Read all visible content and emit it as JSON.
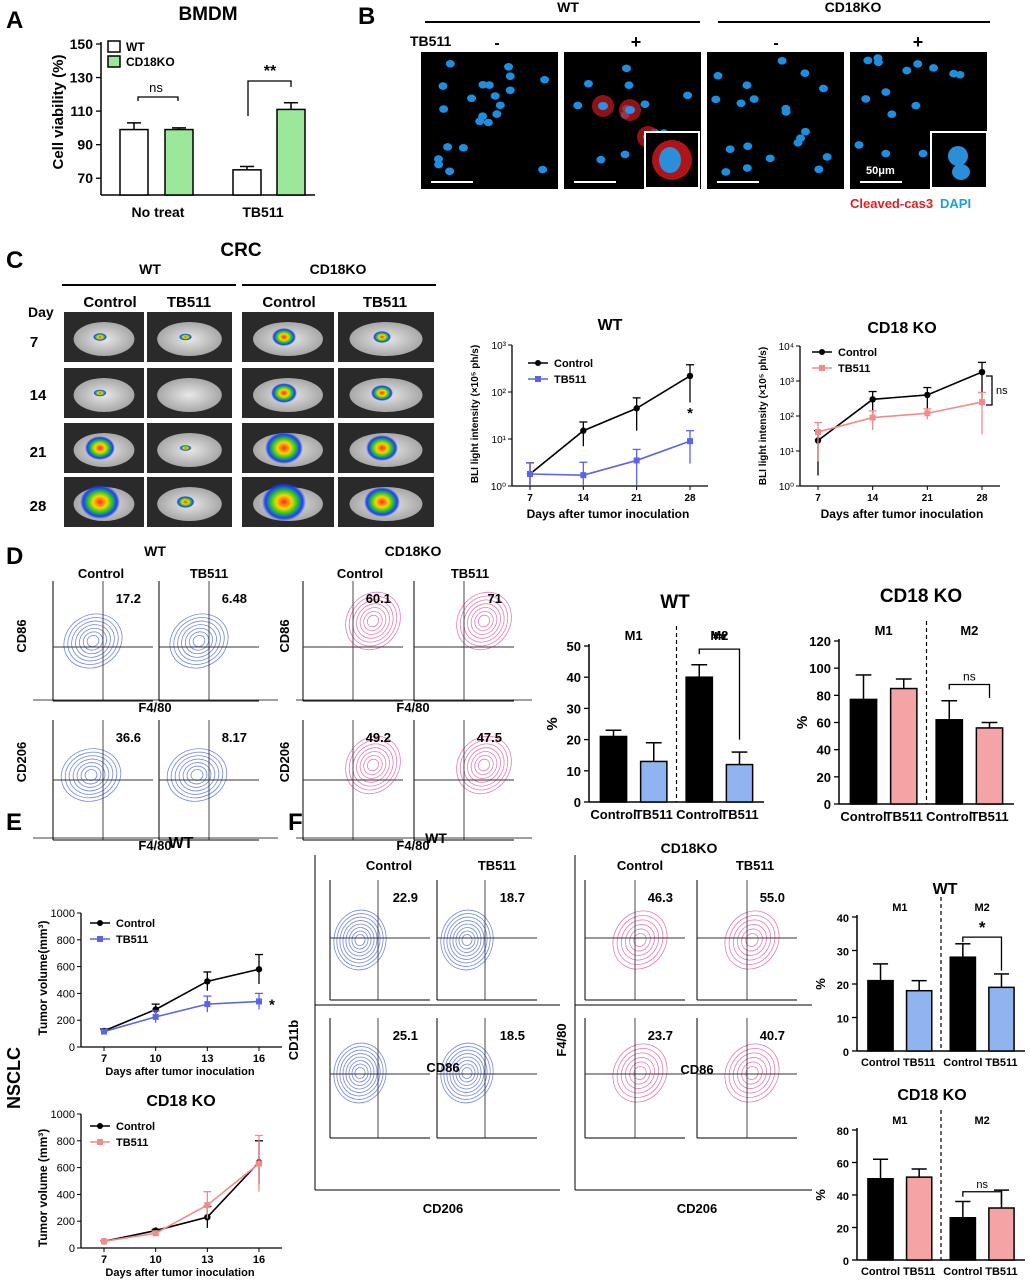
{
  "panels": {
    "A": "A",
    "B": "B",
    "C": "C",
    "D": "D",
    "E": "E",
    "F": "F"
  },
  "panelA": {
    "title": "BMDM",
    "ylabel": "Cell viability (%)",
    "yticks": [
      "150",
      "130",
      "110",
      "90",
      "70"
    ],
    "legend": [
      "WT",
      "CD18KO"
    ],
    "groups": [
      "No treat",
      "TB511"
    ],
    "sig": [
      "ns",
      "**"
    ]
  },
  "panelB": {
    "groups": [
      "WT",
      "CD18KO"
    ],
    "row_label": "TB511",
    "signs": [
      "-",
      "+",
      "-",
      "+"
    ],
    "scale": "50μm",
    "legend_red": "Cleaved-cas3",
    "legend_blue": "DAPI"
  },
  "panelC": {
    "title": "CRC",
    "groups": [
      "WT",
      "CD18KO"
    ],
    "cols": [
      "Control",
      "TB511",
      "Control",
      "TB511"
    ],
    "day_label": "Day",
    "days": [
      "7",
      "14",
      "21",
      "28"
    ],
    "charts": [
      {
        "title": "WT",
        "ylabel": "BLI light intensity (×10⁵ ph/s)",
        "xlabel": "Days after tumor inoculation",
        "yticks": [
          "10⁰",
          "10¹",
          "10²",
          "10³"
        ],
        "xticks": [
          "7",
          "14",
          "21",
          "28"
        ],
        "legend": [
          "Control",
          "TB511"
        ],
        "sig": "*"
      },
      {
        "title": "CD18 KO",
        "ylabel": "BLI light intensity (×10⁵ ph/s)",
        "xlabel": "Days after tumor inoculation",
        "yticks": [
          "10⁰",
          "10¹",
          "10²",
          "10³",
          "10⁴"
        ],
        "xticks": [
          "7",
          "14",
          "21",
          "28"
        ],
        "legend": [
          "Control",
          "TB511"
        ],
        "sig": "ns"
      }
    ]
  },
  "panelD": {
    "groups": [
      "WT",
      "CD18KO"
    ],
    "cols": [
      "Control",
      "TB511",
      "Control",
      "TB511"
    ],
    "y_top": "CD86",
    "y_bottom": "CD206",
    "xlabel": "F4/80",
    "top_values": [
      "17.2",
      "6.48",
      "60.1",
      "71"
    ],
    "bottom_values": [
      "36.6",
      "8.17",
      "49.2",
      "47.5"
    ],
    "bars": [
      {
        "title": "WT",
        "ylabel": "%",
        "yticks": [
          "50",
          "40",
          "30",
          "20",
          "10",
          "0"
        ],
        "groups": [
          "M1",
          "M2"
        ],
        "xlabels": [
          "Control",
          "TB511",
          "Control",
          "TB511"
        ],
        "sig": "**"
      },
      {
        "title": "CD18 KO",
        "ylabel": "%",
        "yticks": [
          "120",
          "100",
          "80",
          "60",
          "40",
          "20",
          "0"
        ],
        "groups": [
          "M1",
          "M2"
        ],
        "xlabels": [
          "Control",
          "TB511",
          "Control",
          "TB511"
        ],
        "sig": "ns"
      }
    ]
  },
  "panelE": {
    "side_label": "NSCLC",
    "charts": [
      {
        "title": "WT",
        "ylabel": "Tumor volume(mm³)",
        "xlabel": "Days after tumor inoculation",
        "yticks": [
          "1000",
          "800",
          "600",
          "400",
          "200",
          "0"
        ],
        "xticks": [
          "7",
          "10",
          "13",
          "16"
        ],
        "legend": [
          "Control",
          "TB511"
        ],
        "sig": "*"
      },
      {
        "title": "CD18 KO",
        "ylabel": "Tumor volume (mm³)",
        "xlabel": "Days after tumor inoculation",
        "yticks": [
          "1000",
          "800",
          "600",
          "400",
          "200",
          "0"
        ],
        "xticks": [
          "7",
          "10",
          "13",
          "16"
        ],
        "legend": [
          "Control",
          "TB511"
        ]
      }
    ]
  },
  "panelF": {
    "groups": [
      "WT",
      "CD18KO"
    ],
    "cols": [
      "Control",
      "TB511",
      "Control",
      "TB511"
    ],
    "y_wt": "CD11b",
    "y_ko": "F4/80",
    "x_top": "CD86",
    "x_bottom": "CD206",
    "top_values": [
      "22.9",
      "18.7",
      "46.3",
      "55.0"
    ],
    "bottom_values": [
      "25.1",
      "18.5",
      "23.7",
      "40.7"
    ],
    "bars": [
      {
        "title": "WT",
        "ylabel": "%",
        "yticks": [
          "40",
          "30",
          "20",
          "10",
          "0"
        ],
        "groups": [
          "M1",
          "M2"
        ],
        "xlabels": [
          "Control",
          "TB511",
          "Control",
          "TB511"
        ],
        "sig": "*"
      },
      {
        "title": "CD18 KO",
        "ylabel": "%",
        "yticks": [
          "80",
          "60",
          "40",
          "20",
          "0"
        ],
        "groups": [
          "M1",
          "M2"
        ],
        "xlabels": [
          "Control",
          "TB511",
          "Control",
          "TB511"
        ],
        "sig": "ns"
      }
    ]
  },
  "colors": {
    "black": "#000000",
    "green": "#9be89b",
    "blue": "#8fb4ef",
    "pink": "#f4a4a4",
    "line_blue": "#5b63e8",
    "line_pink": "#f28b8b",
    "flow_blue": "#5b73d8",
    "flow_pink": "#e066a8",
    "red": "#e02020",
    "cyan": "#1aa0e0"
  },
  "chart_data": [
    {
      "type": "bar",
      "id": "A",
      "categories": [
        "No treat",
        "TB511"
      ],
      "series": [
        {
          "name": "WT",
          "values": [
            99,
            75
          ]
        },
        {
          "name": "CD18KO",
          "values": [
            99,
            111
          ]
        }
      ],
      "errors": [
        [
          4,
          2
        ],
        [
          1,
          4
        ]
      ],
      "ylim": [
        60,
        150
      ]
    },
    {
      "type": "line",
      "id": "C-WT",
      "x": [
        7,
        14,
        21,
        28
      ],
      "log_y": true,
      "series": [
        {
          "name": "Control",
          "values": [
            1.8,
            15,
            45,
            220
          ]
        },
        {
          "name": "TB511",
          "values": [
            1.8,
            1.7,
            3.5,
            9
          ]
        }
      ],
      "ylim": [
        1,
        1000
      ]
    },
    {
      "type": "line",
      "id": "C-CD18KO",
      "x": [
        7,
        14,
        21,
        28
      ],
      "log_y": true,
      "series": [
        {
          "name": "Control",
          "values": [
            20,
            300,
            400,
            1800
          ]
        },
        {
          "name": "TB511",
          "values": [
            35,
            90,
            120,
            250
          ]
        }
      ],
      "ylim": [
        1,
        10000
      ]
    },
    {
      "type": "bar",
      "id": "D-WT",
      "categories": [
        "Control",
        "TB511",
        "Control",
        "TB511"
      ],
      "values": [
        21,
        13,
        40,
        12
      ],
      "errors": [
        2,
        6,
        4,
        4
      ],
      "ylim": [
        0,
        50
      ]
    },
    {
      "type": "bar",
      "id": "D-CD18KO",
      "categories": [
        "Control",
        "TB511",
        "Control",
        "TB511"
      ],
      "values": [
        77,
        85,
        62,
        56
      ],
      "errors": [
        18,
        7,
        14,
        4
      ],
      "ylim": [
        0,
        120
      ]
    },
    {
      "type": "line",
      "id": "E-WT",
      "x": [
        7,
        10,
        13,
        16
      ],
      "series": [
        {
          "name": "Control",
          "values": [
            120,
            280,
            490,
            580
          ]
        },
        {
          "name": "TB511",
          "values": [
            115,
            225,
            320,
            340
          ]
        }
      ],
      "ylim": [
        0,
        1000
      ]
    },
    {
      "type": "line",
      "id": "E-CD18KO",
      "x": [
        7,
        10,
        13,
        16
      ],
      "series": [
        {
          "name": "Control",
          "values": [
            50,
            130,
            230,
            640
          ]
        },
        {
          "name": "TB511",
          "values": [
            50,
            110,
            320,
            630
          ]
        }
      ],
      "ylim": [
        0,
        1000
      ]
    },
    {
      "type": "bar",
      "id": "F-WT",
      "categories": [
        "Control",
        "TB511",
        "Control",
        "TB511"
      ],
      "values": [
        21,
        18,
        28,
        19
      ],
      "errors": [
        5,
        3,
        4,
        4
      ],
      "ylim": [
        0,
        40
      ]
    },
    {
      "type": "bar",
      "id": "F-CD18KO",
      "categories": [
        "Control",
        "TB511",
        "Control",
        "TB511"
      ],
      "values": [
        50,
        51,
        26,
        32
      ],
      "errors": [
        12,
        5,
        10,
        11
      ],
      "ylim": [
        0,
        80
      ]
    }
  ]
}
